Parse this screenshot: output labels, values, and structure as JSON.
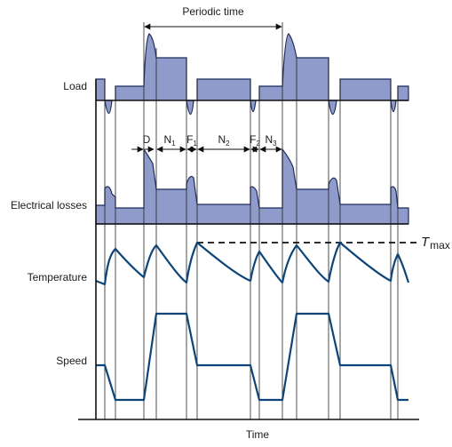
{
  "labels": {
    "periodic_time": "Periodic time",
    "load": "Load",
    "electrical_losses": "Electrical losses",
    "temperature": "Temperature",
    "speed": "Speed",
    "time": "Time",
    "t_max_symbol": "T",
    "t_max_sub": "max"
  },
  "phases": [
    {
      "main": "D",
      "sub": ""
    },
    {
      "main": "N",
      "sub": "1"
    },
    {
      "main": "F",
      "sub": "1"
    },
    {
      "main": "N",
      "sub": "2"
    },
    {
      "main": "F",
      "sub": "2"
    },
    {
      "main": "N",
      "sub": "3"
    }
  ],
  "colors": {
    "fill": "#8f9ccb",
    "wave": "#0e4578",
    "outline": "#1f2c5c"
  }
}
